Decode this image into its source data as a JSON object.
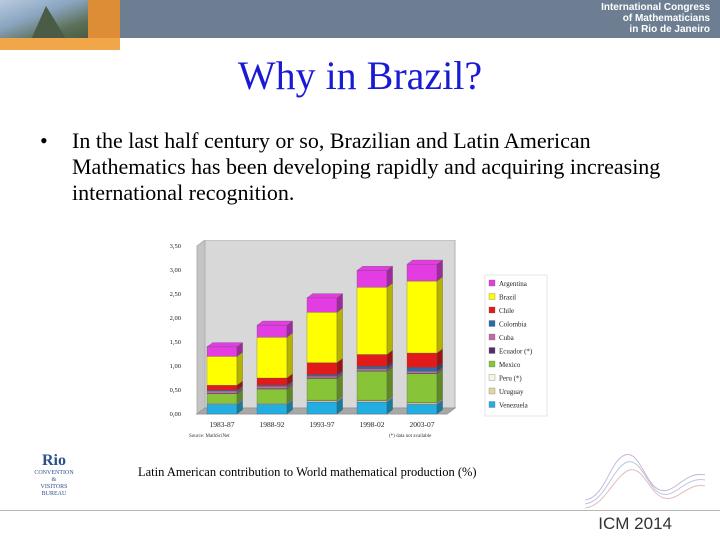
{
  "header": {
    "line1": "International Congress",
    "line2": "of Mathematicians",
    "line3": "in Rio de Janeiro"
  },
  "slide": {
    "title": "Why in Brazil?",
    "bullet_marker": "•",
    "bullet_text": "In the last half century or so, Brazilian and Latin American Mathematics has been developing rapidly and acquiring increasing international recognition."
  },
  "chart_data": {
    "type": "bar",
    "stacked": true,
    "categories": [
      "1983-87",
      "1988-92",
      "1993-97",
      "1998-02",
      "2003-07"
    ],
    "ylim": [
      0,
      3.5
    ],
    "yticks": [
      "0,00",
      "0,50",
      "1,00",
      "1,50",
      "2,00",
      "2,50",
      "3,00",
      "3,50"
    ],
    "series": [
      {
        "name": "Venezuela",
        "color": "#22aee0",
        "values": [
          0.2,
          0.2,
          0.25,
          0.25,
          0.2
        ]
      },
      {
        "name": "Uruguay",
        "color": "#e0d6a0",
        "values": [
          0.02,
          0.02,
          0.03,
          0.03,
          0.03
        ]
      },
      {
        "name": "Peru (*)",
        "color": "#f5f5e6",
        "values": [
          0.0,
          0.0,
          0.01,
          0.01,
          0.01
        ]
      },
      {
        "name": "Mexico",
        "color": "#88c438",
        "values": [
          0.2,
          0.3,
          0.45,
          0.6,
          0.6
        ]
      },
      {
        "name": "Ecuador (*)",
        "color": "#5a2b6b",
        "values": [
          0.01,
          0.01,
          0.01,
          0.01,
          0.01
        ]
      },
      {
        "name": "Cuba",
        "color": "#c36aa1",
        "values": [
          0.05,
          0.05,
          0.04,
          0.04,
          0.04
        ]
      },
      {
        "name": "Colombia",
        "color": "#2a6aa8",
        "values": [
          0.02,
          0.02,
          0.03,
          0.05,
          0.08
        ]
      },
      {
        "name": "Chile",
        "color": "#e21a1a",
        "values": [
          0.1,
          0.15,
          0.25,
          0.25,
          0.3
        ]
      },
      {
        "name": "Brazil",
        "color": "#ffff00",
        "values": [
          0.6,
          0.85,
          1.05,
          1.4,
          1.5
        ]
      },
      {
        "name": "Argentina",
        "color": "#e23ce2",
        "values": [
          0.2,
          0.25,
          0.3,
          0.35,
          0.35
        ]
      }
    ],
    "legend_order": [
      "Argentina",
      "Brazil",
      "Chile",
      "Colombia",
      "Cuba",
      "Ecuador (*)",
      "Mexico",
      "Peru (*)",
      "Uruguay",
      "Venezuela"
    ],
    "source_note": "Source: MathSciNet",
    "data_note": "(*) data not available",
    "grid": false,
    "legend_position": "right"
  },
  "caption": "Latin American contribution to World mathematical production (%)",
  "footer": {
    "rio_logo_big": "Rio",
    "rio_logo_line1": "&",
    "rio_logo_line2": "CONVENTION",
    "rio_logo_line3": "VISITORS",
    "rio_logo_line4": "BUREAU",
    "icm_label": "ICM 2014"
  }
}
